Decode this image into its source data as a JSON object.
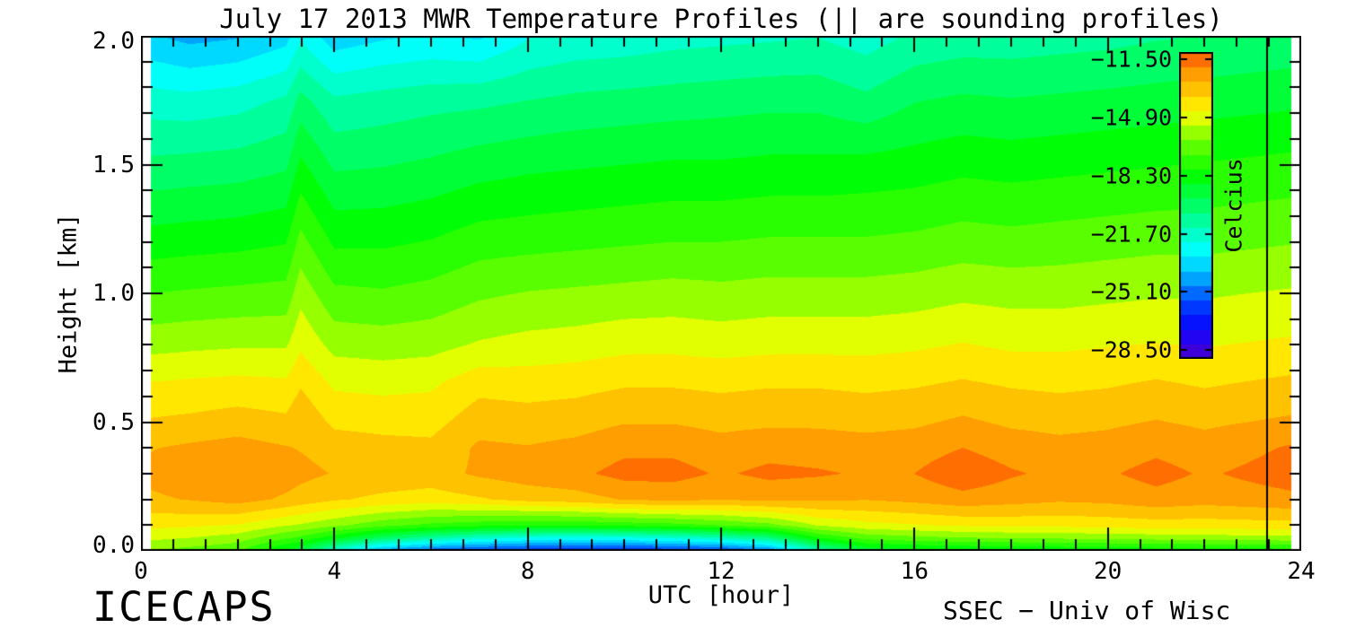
{
  "page": {
    "background": "#FFFFFF",
    "text_color": "#000000"
  },
  "footer": {
    "left": "ICECAPS",
    "right": "SSEC − Univ of Wisc"
  },
  "chart_data": {
    "type": "heatmap",
    "subtype": "filled-contour",
    "title": "July 17 2013 MWR Temperature Profiles (|| are sounding profiles)",
    "xlabel": "UTC [hour]",
    "ylabel": "Height [km]",
    "xlim": [
      0,
      24
    ],
    "ylim": [
      0.0,
      2.0
    ],
    "grid": false,
    "xticks_major": [
      0,
      4,
      8,
      12,
      16,
      20,
      24
    ],
    "xtick_labels": [
      "0",
      "4",
      "8",
      "12",
      "16",
      "20",
      "24"
    ],
    "xtick_minor_per_major": 6,
    "yticks_major": [
      0.0,
      0.5,
      1.0,
      1.5,
      2.0
    ],
    "ytick_labels": [
      "0.0",
      "0.5",
      "1.0",
      "1.5",
      "2.0"
    ],
    "ytick_minor_per_major": 5,
    "colorbar": {
      "label": "Celcius",
      "min": -29.0,
      "max": -11.1,
      "tick_values": [
        -11.5,
        -14.9,
        -18.3,
        -21.7,
        -25.1,
        -28.5
      ],
      "tick_labels": [
        "−11.50",
        "−14.90",
        "−18.30",
        "−21.70",
        "−25.10",
        "−28.50"
      ]
    },
    "band_step_c": 0.85,
    "colormap": [
      {
        "f": 0.0,
        "c": "#4A00C8"
      },
      {
        "f": 0.06,
        "c": "#2800F0"
      },
      {
        "f": 0.13,
        "c": "#0014FF"
      },
      {
        "f": 0.21,
        "c": "#0064FF"
      },
      {
        "f": 0.29,
        "c": "#00C8FF"
      },
      {
        "f": 0.35,
        "c": "#00FFFF"
      },
      {
        "f": 0.43,
        "c": "#00FFB4"
      },
      {
        "f": 0.51,
        "c": "#00FF5A"
      },
      {
        "f": 0.6,
        "c": "#00FF00"
      },
      {
        "f": 0.69,
        "c": "#5AFF00"
      },
      {
        "f": 0.75,
        "c": "#A8FF00"
      },
      {
        "f": 0.8,
        "c": "#FFFF00"
      },
      {
        "f": 0.87,
        "c": "#FFC800"
      },
      {
        "f": 0.93,
        "c": "#FF9B00"
      },
      {
        "f": 0.97,
        "c": "#FF7300"
      },
      {
        "f": 1.0,
        "c": "#FF4600"
      }
    ],
    "sounding_lines_utc": [
      23.3
    ],
    "hours": [
      0.2,
      1,
      2,
      3,
      3.3,
      4,
      5,
      6,
      7,
      8,
      9,
      10,
      11,
      12,
      13,
      14,
      15,
      16,
      17,
      18,
      19,
      20,
      21,
      22,
      23.8
    ],
    "heights_km": [
      0.0,
      0.05,
      0.1,
      0.2,
      0.3,
      0.4,
      0.5,
      0.65,
      0.8,
      1.0,
      1.2,
      1.5,
      1.75,
      2.0
    ],
    "temperature_c": [
      [
        -16.3,
        -16.6,
        -17.0,
        -19.0,
        -19.5,
        -22.0,
        -24.5,
        -25.5,
        -26.0,
        -26.3,
        -26.5,
        -26.5,
        -26.3,
        -26.0,
        -25.0,
        -21.5,
        -19.5,
        -19.2,
        -19.0,
        -18.9,
        -18.8,
        -18.7,
        -18.6,
        -18.5,
        -18.4
      ],
      [
        -15.2,
        -15.4,
        -15.8,
        -17.0,
        -17.3,
        -18.5,
        -20.0,
        -21.0,
        -21.8,
        -22.3,
        -22.5,
        -22.3,
        -22.0,
        -21.5,
        -20.5,
        -18.0,
        -16.8,
        -16.5,
        -16.3,
        -16.2,
        -16.1,
        -16.0,
        -15.9,
        -15.8,
        -15.7
      ],
      [
        -14.3,
        -14.4,
        -14.6,
        -15.3,
        -15.5,
        -16.0,
        -16.8,
        -17.3,
        -17.6,
        -17.8,
        -17.8,
        -17.6,
        -17.4,
        -17.0,
        -16.5,
        -15.3,
        -14.8,
        -14.6,
        -14.4,
        -14.3,
        -14.3,
        -14.2,
        -14.1,
        -14.1,
        -14.0
      ],
      [
        -13.0,
        -12.8,
        -12.5,
        -13.0,
        -13.2,
        -13.6,
        -13.9,
        -14.1,
        -13.8,
        -13.4,
        -13.2,
        -12.8,
        -12.6,
        -12.8,
        -12.6,
        -12.7,
        -12.8,
        -12.6,
        -12.3,
        -12.5,
        -12.7,
        -12.6,
        -12.3,
        -12.5,
        -12.2
      ],
      [
        -12.6,
        -12.3,
        -12.0,
        -12.4,
        -12.6,
        -12.9,
        -13.1,
        -13.2,
        -12.7,
        -12.4,
        -12.2,
        -11.7,
        -11.7,
        -12.1,
        -11.8,
        -11.9,
        -12.1,
        -12.0,
        -11.4,
        -11.9,
        -12.2,
        -12.1,
        -11.7,
        -12.1,
        -11.6
      ],
      [
        -12.9,
        -12.7,
        -12.5,
        -12.8,
        -12.9,
        -13.2,
        -13.4,
        -13.5,
        -12.7,
        -12.8,
        -12.6,
        -12.2,
        -12.2,
        -12.5,
        -12.3,
        -12.4,
        -12.5,
        -12.4,
        -12.0,
        -12.4,
        -12.6,
        -12.5,
        -12.2,
        -12.5,
        -11.9
      ],
      [
        -13.6,
        -13.5,
        -13.3,
        -13.5,
        -13.0,
        -13.9,
        -14.0,
        -14.0,
        -13.2,
        -13.3,
        -13.2,
        -12.9,
        -12.9,
        -13.1,
        -13.0,
        -13.0,
        -13.1,
        -13.0,
        -12.7,
        -13.0,
        -13.1,
        -13.0,
        -12.8,
        -13.0,
        -12.7
      ],
      [
        -14.5,
        -14.4,
        -14.3,
        -14.4,
        -13.8,
        -14.7,
        -14.8,
        -14.7,
        -14.0,
        -14.1,
        -14.0,
        -13.8,
        -13.8,
        -13.9,
        -13.8,
        -13.8,
        -13.9,
        -13.8,
        -13.6,
        -13.8,
        -13.9,
        -13.8,
        -13.6,
        -13.8,
        -13.5
      ],
      [
        -15.7,
        -15.6,
        -15.5,
        -15.5,
        -14.7,
        -15.7,
        -15.8,
        -15.7,
        -15.3,
        -15.1,
        -15.0,
        -14.8,
        -14.8,
        -14.9,
        -14.8,
        -14.8,
        -14.8,
        -14.7,
        -14.5,
        -14.7,
        -14.7,
        -14.6,
        -14.5,
        -14.6,
        -14.4
      ],
      [
        -17.1,
        -17.0,
        -16.9,
        -16.8,
        -15.7,
        -16.9,
        -17.0,
        -16.8,
        -16.4,
        -16.2,
        -16.1,
        -16.0,
        -15.9,
        -16.0,
        -15.9,
        -15.9,
        -15.9,
        -15.8,
        -15.6,
        -15.7,
        -15.7,
        -15.6,
        -15.5,
        -15.5,
        -15.3
      ],
      [
        -18.4,
        -18.3,
        -18.2,
        -18.0,
        -16.8,
        -18.1,
        -18.1,
        -17.9,
        -17.5,
        -17.4,
        -17.3,
        -17.2,
        -17.1,
        -17.1,
        -17.0,
        -17.0,
        -17.0,
        -16.9,
        -16.7,
        -16.8,
        -16.7,
        -16.6,
        -16.5,
        -16.5,
        -16.3
      ],
      [
        -20.3,
        -20.2,
        -20.1,
        -19.8,
        -18.6,
        -19.8,
        -19.7,
        -19.5,
        -19.2,
        -19.0,
        -18.9,
        -18.8,
        -18.7,
        -18.7,
        -18.6,
        -18.6,
        -18.5,
        -18.4,
        -18.2,
        -18.3,
        -18.2,
        -18.1,
        -18.0,
        -17.9,
        -17.7
      ],
      [
        -21.8,
        -21.9,
        -21.7,
        -21.2,
        -20.2,
        -21.2,
        -21.0,
        -20.8,
        -20.7,
        -20.5,
        -20.3,
        -20.2,
        -20.1,
        -20.0,
        -19.9,
        -19.9,
        -20.3,
        -19.7,
        -19.5,
        -19.6,
        -19.5,
        -19.4,
        -19.3,
        -19.2,
        -19.0
      ],
      [
        -23.8,
        -24.2,
        -24.0,
        -23.4,
        -22.4,
        -23.6,
        -23.2,
        -23.0,
        -23.2,
        -22.3,
        -22.0,
        -21.9,
        -21.7,
        -21.6,
        -21.5,
        -21.4,
        -21.8,
        -21.2,
        -21.0,
        -21.0,
        -20.9,
        -20.8,
        -20.6,
        -20.5,
        -20.3
      ]
    ],
    "data_hour_start": 0.2,
    "data_hour_end": 23.8
  }
}
